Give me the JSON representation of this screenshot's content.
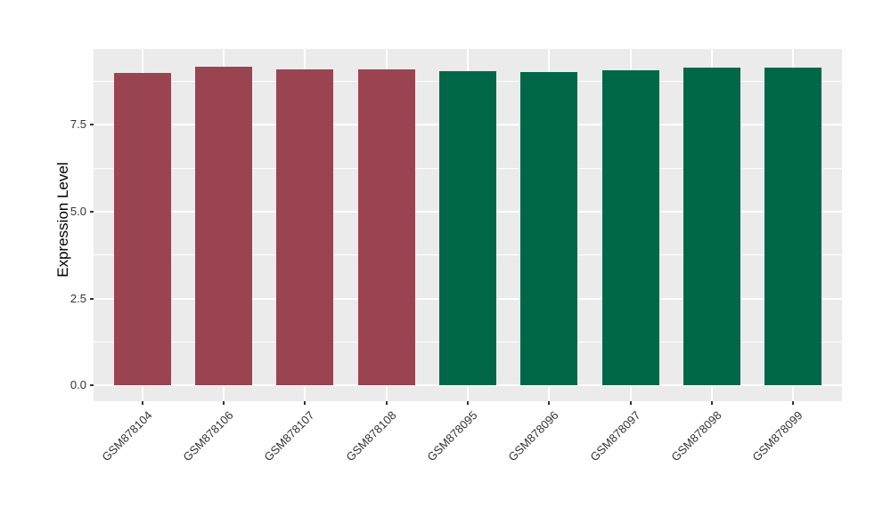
{
  "chart_data": {
    "type": "bar",
    "title": "",
    "xlabel": "",
    "ylabel": "Expression Level",
    "categories": [
      "GSM878104",
      "GSM878106",
      "GSM878107",
      "GSM878108",
      "GSM878095",
      "GSM878096",
      "GSM878097",
      "GSM878098",
      "GSM878099"
    ],
    "values": [
      9.0,
      9.18,
      9.1,
      9.1,
      9.05,
      9.03,
      9.08,
      9.15,
      9.15
    ],
    "bar_colors": [
      "#9A4452",
      "#9A4452",
      "#9A4452",
      "#9A4452",
      "#006849",
      "#006849",
      "#006849",
      "#006849",
      "#006849"
    ],
    "group_colors": {
      "left_group": "#9A4452",
      "right_group": "#006849"
    },
    "y_tick_labels": [
      "0.0",
      "2.5",
      "5.0",
      "7.5"
    ],
    "y_tick_values": [
      0,
      2.5,
      5,
      7.5
    ],
    "y_minor_values": [
      1.25,
      3.75,
      6.25,
      8.75
    ],
    "ylim": [
      -0.46,
      9.69
    ],
    "x_label_angle": 45,
    "grid": true,
    "legend_position": "none",
    "panel_bg": "#EBEBEB",
    "grid_color": "#FFFFFF",
    "tick_color": "#333333",
    "axis_text_color": "#333333",
    "axis_title_color": "#000000",
    "bar_width_fraction": 0.7
  }
}
